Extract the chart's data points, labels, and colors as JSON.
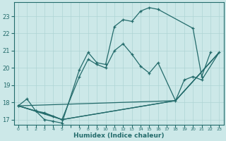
{
  "xlabel": "Humidex (Indice chaleur)",
  "xlim": [
    -0.5,
    23.5
  ],
  "ylim": [
    16.7,
    23.8
  ],
  "yticks": [
    17,
    18,
    19,
    20,
    21,
    22,
    23
  ],
  "ytick_labels": [
    "17",
    "18",
    "19",
    "20",
    "21",
    "22",
    "23"
  ],
  "background_color": "#cce8e8",
  "grid_color": "#aed4d4",
  "line_color": "#236b6b",
  "line1_x": [
    0,
    1,
    2,
    3,
    4,
    5,
    7,
    8,
    9,
    10,
    11,
    12,
    13,
    14,
    15,
    16,
    20,
    21,
    22
  ],
  "line1_y": [
    17.8,
    18.2,
    17.5,
    17.0,
    16.9,
    16.8,
    19.9,
    20.9,
    20.3,
    20.2,
    22.4,
    22.8,
    22.7,
    23.3,
    23.5,
    23.4,
    22.3,
    19.5,
    20.9
  ],
  "line2_x": [
    0,
    2,
    3,
    4,
    5,
    7,
    8,
    9,
    10,
    11,
    12,
    13,
    14,
    15,
    16,
    18,
    19,
    20,
    21,
    23
  ],
  "line2_y": [
    17.8,
    17.5,
    17.4,
    17.2,
    17.0,
    19.5,
    20.5,
    20.2,
    20.0,
    21.0,
    21.4,
    20.8,
    20.1,
    19.7,
    20.3,
    18.1,
    19.3,
    19.5,
    19.3,
    20.9
  ],
  "line3_x": [
    0,
    18,
    23
  ],
  "line3_y": [
    17.8,
    18.1,
    20.9
  ],
  "line4_x": [
    0,
    5,
    18,
    23
  ],
  "line4_y": [
    17.8,
    17.0,
    18.1,
    20.9
  ],
  "line5_x": [
    0,
    4,
    5,
    18,
    23
  ],
  "line5_y": [
    17.8,
    17.2,
    17.0,
    18.1,
    20.9
  ]
}
